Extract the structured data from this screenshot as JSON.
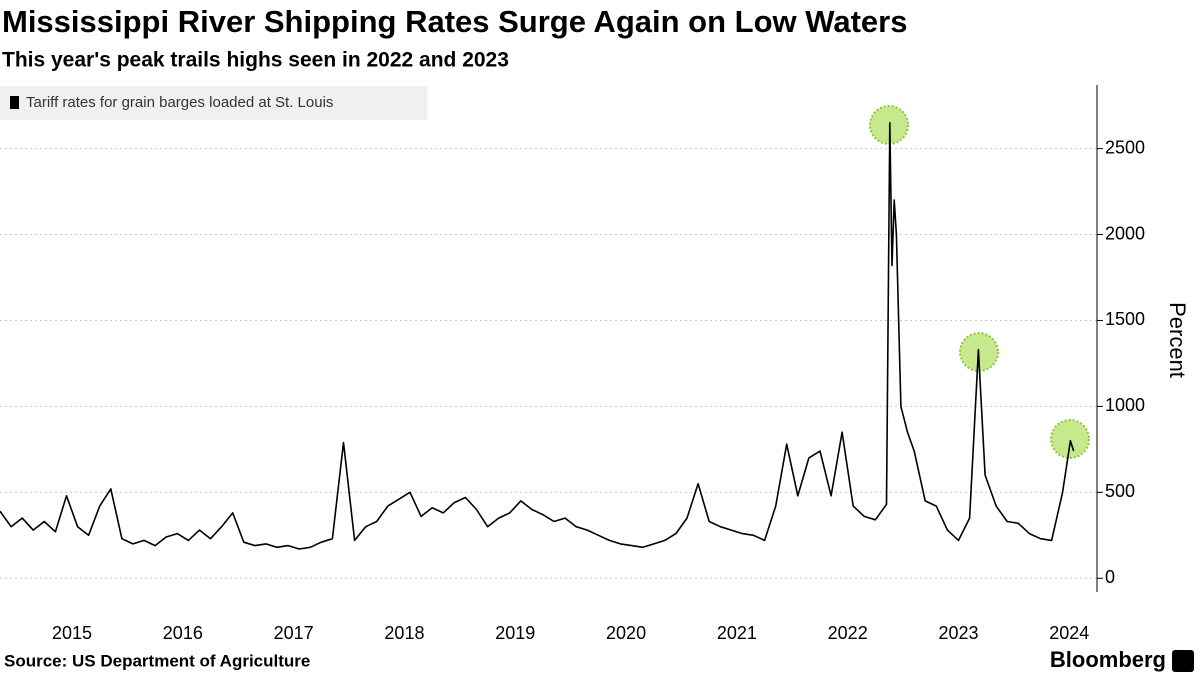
{
  "chart_data": {
    "type": "line",
    "title": "Mississippi River Shipping Rates Surge Again on Low Waters",
    "subtitle": "This year's peak trails highs seen in 2022 and 2023",
    "y_label": "Percent",
    "source": "Source: US Department of Agriculture",
    "brand": "Bloomberg",
    "legend": "top-left",
    "grid": true,
    "xlim": [
      2014.85,
      2024.75
    ],
    "xticks": [
      {
        "value": 2015.5,
        "label": "2015"
      },
      {
        "value": 2016.5,
        "label": "2016"
      },
      {
        "value": 2017.5,
        "label": "2017"
      },
      {
        "value": 2018.5,
        "label": "2018"
      },
      {
        "value": 2019.5,
        "label": "2019"
      },
      {
        "value": 2020.5,
        "label": "2020"
      },
      {
        "value": 2021.5,
        "label": "2021"
      },
      {
        "value": 2022.5,
        "label": "2022"
      },
      {
        "value": 2023.5,
        "label": "2023"
      },
      {
        "value": 2024.5,
        "label": "2024"
      }
    ],
    "ylim": [
      -80,
      2870
    ],
    "yticks": [
      0,
      500,
      1000,
      1500,
      2000,
      2500
    ],
    "x": [
      2014.85,
      2014.95,
      2015.05,
      2015.15,
      2015.25,
      2015.35,
      2015.45,
      2015.55,
      2015.65,
      2015.75,
      2015.85,
      2015.95,
      2016.05,
      2016.15,
      2016.25,
      2016.35,
      2016.45,
      2016.55,
      2016.65,
      2016.75,
      2016.85,
      2016.95,
      2017.05,
      2017.15,
      2017.25,
      2017.35,
      2017.45,
      2017.55,
      2017.65,
      2017.75,
      2017.85,
      2017.95,
      2018.05,
      2018.15,
      2018.25,
      2018.35,
      2018.45,
      2018.55,
      2018.65,
      2018.75,
      2018.85,
      2018.95,
      2019.05,
      2019.15,
      2019.25,
      2019.35,
      2019.45,
      2019.55,
      2019.65,
      2019.75,
      2019.85,
      2019.95,
      2020.05,
      2020.15,
      2020.25,
      2020.35,
      2020.45,
      2020.55,
      2020.65,
      2020.75,
      2020.85,
      2020.95,
      2021.05,
      2021.15,
      2021.25,
      2021.35,
      2021.45,
      2021.55,
      2021.65,
      2021.75,
      2021.85,
      2021.95,
      2022.05,
      2022.15,
      2022.25,
      2022.35,
      2022.45,
      2022.55,
      2022.65,
      2022.75,
      2022.85,
      2022.88,
      2022.9,
      2022.92,
      2022.94,
      2022.98,
      2023.04,
      2023.1,
      2023.2,
      2023.3,
      2023.4,
      2023.5,
      2023.6,
      2023.68,
      2023.74,
      2023.84,
      2023.94,
      2024.04,
      2024.14,
      2024.24,
      2024.34,
      2024.44,
      2024.51,
      2024.54
    ],
    "series": [
      {
        "name": "Tariff rates for grain barges loaded at St. Louis",
        "color": "#000000",
        "values": [
          390,
          300,
          350,
          280,
          330,
          270,
          480,
          300,
          250,
          420,
          520,
          230,
          200,
          220,
          190,
          240,
          260,
          220,
          280,
          230,
          300,
          380,
          210,
          190,
          200,
          180,
          190,
          170,
          180,
          210,
          230,
          790,
          220,
          300,
          330,
          420,
          460,
          500,
          360,
          410,
          380,
          440,
          470,
          400,
          300,
          350,
          380,
          450,
          400,
          370,
          330,
          350,
          300,
          280,
          250,
          220,
          200,
          190,
          180,
          200,
          220,
          260,
          350,
          550,
          330,
          300,
          280,
          260,
          250,
          220,
          420,
          780,
          480,
          700,
          740,
          480,
          850,
          420,
          360,
          340,
          430,
          2650,
          1820,
          2200,
          2000,
          1000,
          850,
          740,
          450,
          420,
          280,
          220,
          350,
          1330,
          600,
          420,
          330,
          320,
          260,
          230,
          220,
          500,
          800,
          740
        ]
      }
    ]
  }
}
